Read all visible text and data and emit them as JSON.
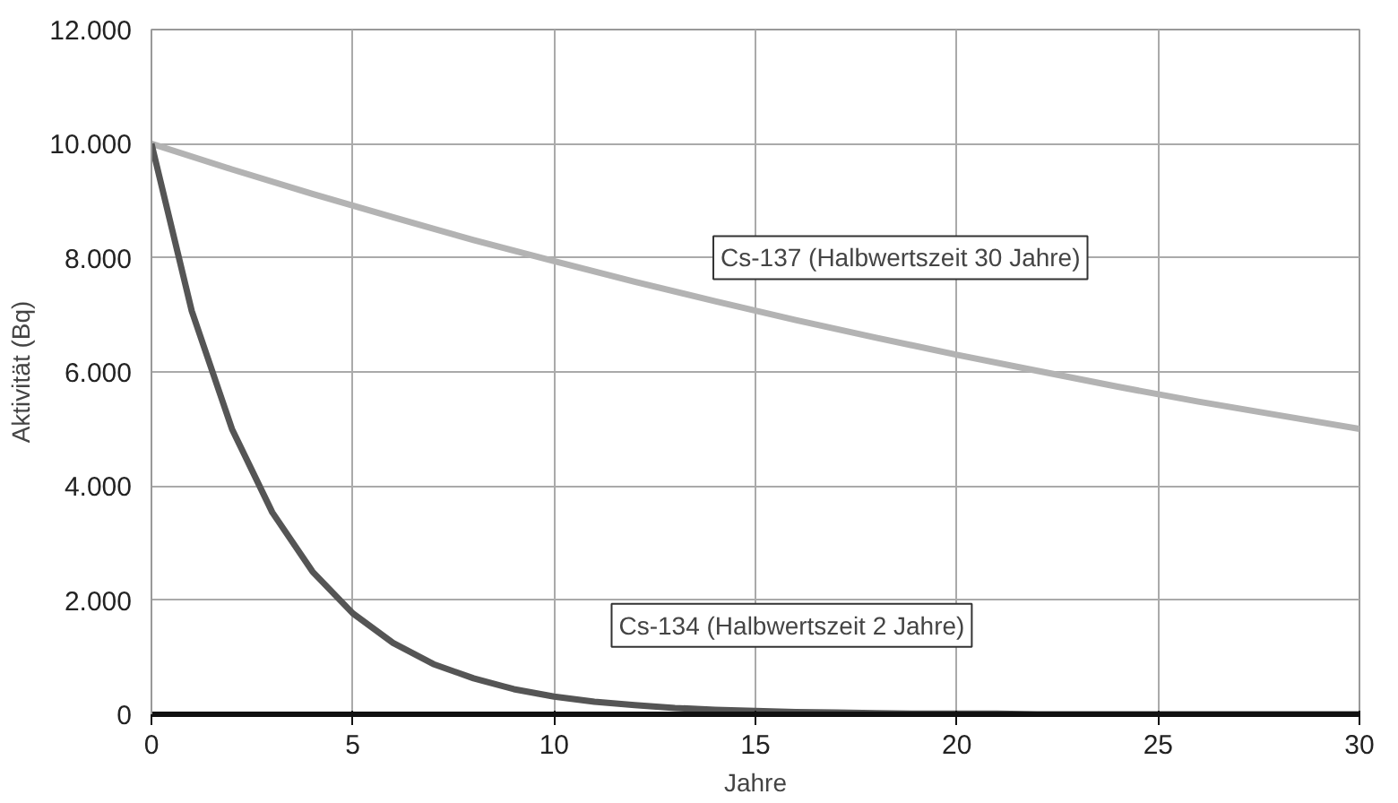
{
  "chart_data": {
    "type": "line",
    "xlabel": "Jahre",
    "ylabel": "Aktivität (Bq)",
    "xlim": [
      0,
      30
    ],
    "ylim": [
      0,
      12000
    ],
    "xticks": [
      0,
      5,
      10,
      15,
      20,
      25,
      30
    ],
    "yticks": [
      {
        "value": 0,
        "label": "0"
      },
      {
        "value": 2000,
        "label": "2.000"
      },
      {
        "value": 4000,
        "label": "4.000"
      },
      {
        "value": 6000,
        "label": "6.000"
      },
      {
        "value": 8000,
        "label": "8.000"
      },
      {
        "value": 10000,
        "label": "10.000"
      },
      {
        "value": 12000,
        "label": "12.000"
      }
    ],
    "grid": true,
    "marker": "none",
    "line_style": "solid",
    "series": [
      {
        "name": "Cs-137 (Halbwertszeit 30 Jahre)",
        "color": "#b3b3b3",
        "x": [
          0,
          2,
          4,
          6,
          8,
          10,
          12,
          14,
          16,
          18,
          20,
          22,
          24,
          26,
          28,
          30
        ],
        "values": [
          10000,
          9550,
          9120,
          8710,
          8310,
          7940,
          7580,
          7240,
          6910,
          6600,
          6300,
          6020,
          5740,
          5480,
          5240,
          5000
        ]
      },
      {
        "name": "Cs-134 (Halbwertszeit 2 Jahre)",
        "color": "#555555",
        "x": [
          0,
          1,
          2,
          3,
          4,
          5,
          6,
          7,
          8,
          9,
          10,
          11,
          12,
          13,
          14,
          15,
          16,
          17,
          18,
          19,
          20,
          21,
          22,
          23,
          24,
          25,
          26,
          27,
          28,
          29,
          30
        ],
        "values": [
          10000,
          7070,
          5000,
          3540,
          2500,
          1770,
          1250,
          880,
          630,
          440,
          310,
          220,
          160,
          110,
          80,
          60,
          40,
          30,
          20,
          10,
          10,
          10,
          0,
          0,
          0,
          0,
          0,
          0,
          0,
          0,
          0
        ]
      }
    ]
  }
}
